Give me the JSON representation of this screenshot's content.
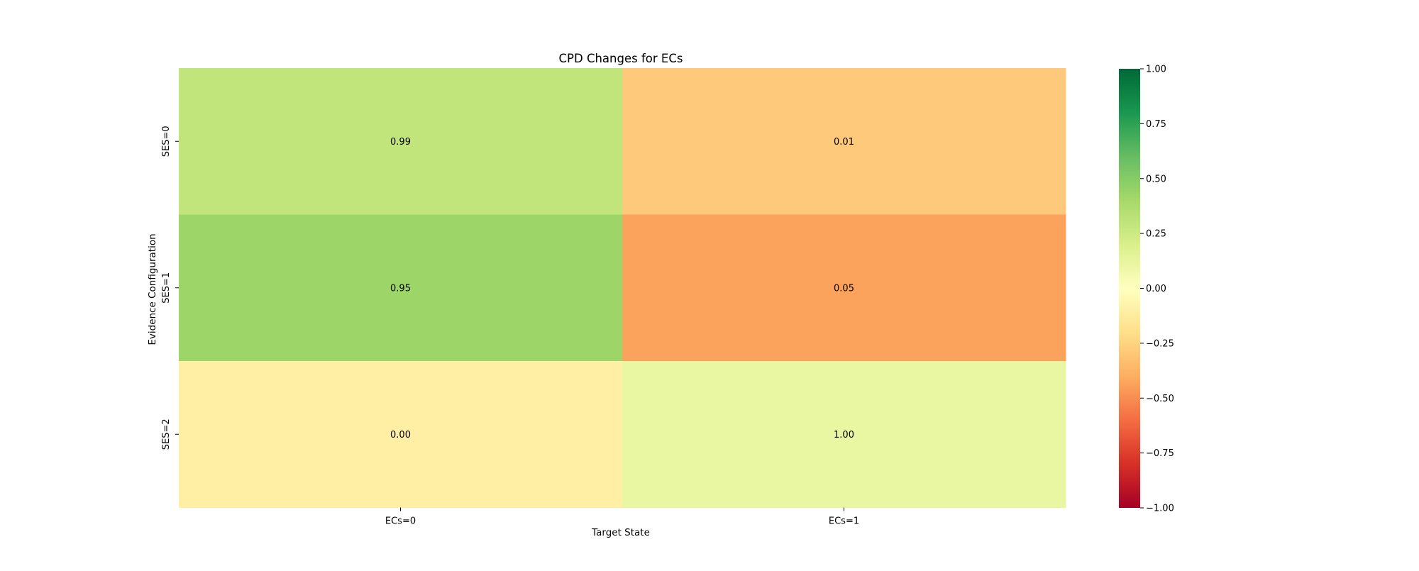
{
  "chart_data": {
    "type": "heatmap",
    "title": "CPD Changes for ECs",
    "xlabel": "Target State",
    "ylabel": "Evidence Configuration",
    "columns": [
      "ECs=0",
      "ECs=1"
    ],
    "rows": [
      "SES=0",
      "SES=1",
      "SES=2"
    ],
    "annotations": [
      [
        "0.99",
        "0.01"
      ],
      [
        "0.95",
        "0.05"
      ],
      [
        "0.00",
        "1.00"
      ]
    ],
    "cell_colors": [
      [
        "#c2e57b",
        "#fec97a"
      ],
      [
        "#9dd569",
        "#fba35d"
      ],
      [
        "#feefa4",
        "#e9f6a2"
      ]
    ],
    "colorbar": {
      "colormap": "RdYlGn",
      "range": [
        -1.0,
        1.0
      ],
      "ticks": [
        1.0,
        0.75,
        0.5,
        0.25,
        0.0,
        -0.25,
        -0.5,
        -0.75,
        -1.0
      ],
      "tick_labels": [
        "1.00",
        "0.75",
        "0.50",
        "0.25",
        "0.00",
        "−0.25",
        "−0.50",
        "−0.75",
        "−1.00"
      ]
    }
  }
}
